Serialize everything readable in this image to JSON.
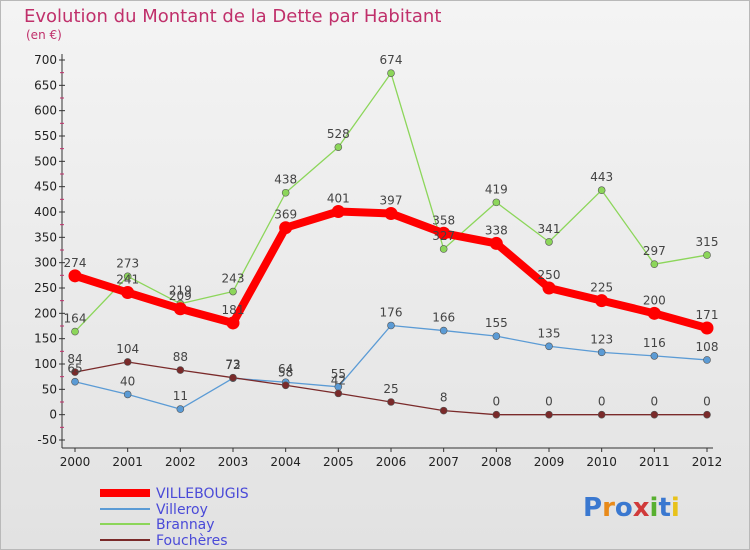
{
  "chart_data": {
    "type": "line",
    "title": "Evolution du Montant de la Dette par Habitant",
    "subtitle": "(en €)",
    "x": [
      "2000",
      "2001",
      "2002",
      "2003",
      "2004",
      "2005",
      "2006",
      "2007",
      "2008",
      "2009",
      "2010",
      "2011",
      "2012"
    ],
    "yticks": [
      -50,
      0,
      50,
      100,
      150,
      200,
      250,
      300,
      350,
      400,
      450,
      500,
      550,
      600,
      650,
      700
    ],
    "ylim": [
      -50,
      700
    ],
    "grid": false,
    "legend_position": "bottom-left",
    "series": [
      {
        "name": "VILLEBOUGIS",
        "color": "#ff0000",
        "values": [
          274,
          241,
          209,
          181,
          369,
          401,
          397,
          358,
          338,
          250,
          225,
          200,
          171
        ]
      },
      {
        "name": "Villeroy",
        "color": "#5b9bd5",
        "values": [
          65,
          40,
          11,
          72,
          64,
          55,
          176,
          166,
          155,
          135,
          123,
          116,
          108
        ]
      },
      {
        "name": "Brannay",
        "color": "#8cd65a",
        "values": [
          164,
          273,
          219,
          243,
          438,
          528,
          674,
          327,
          419,
          341,
          443,
          297,
          315
        ]
      },
      {
        "name": "Fouchères",
        "color": "#7a2a2a",
        "values": [
          84,
          104,
          88,
          73,
          58,
          42,
          25,
          8,
          0,
          0,
          0,
          0,
          0
        ]
      }
    ]
  },
  "logo": {
    "text": "Proxiti"
  }
}
